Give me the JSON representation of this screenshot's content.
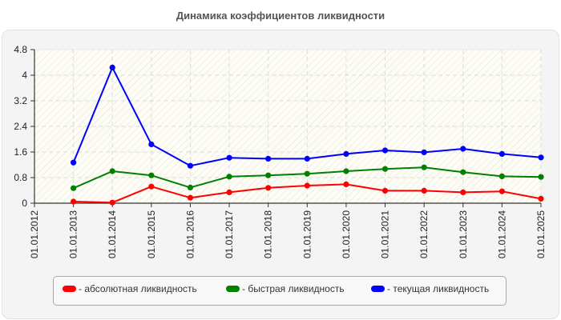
{
  "title": "Динамика коэффициентов ликвидности",
  "chart_data": {
    "type": "line",
    "title": "Динамика коэффициентов ликвидности",
    "xlabel": "",
    "ylabel": "",
    "categories": [
      "01.01.2012",
      "01.01.2013",
      "01.01.2014",
      "01.01.2015",
      "01.01.2016",
      "01.01.2017",
      "01.01.2018",
      "01.01.2019",
      "01.01.2020",
      "01.01.2021",
      "01.01.2022",
      "01.01.2023",
      "01.01.2024",
      "01.01.2025"
    ],
    "yticks": [
      "0",
      "0.8",
      "1.6",
      "2.4",
      "3.2",
      "4",
      "4.8"
    ],
    "ylim": [
      0,
      4.8
    ],
    "grid": true,
    "legend_position": "bottom",
    "series": [
      {
        "name": "абсолютная ликвидность",
        "color": "#ff0000",
        "values": [
          null,
          0.05,
          0.02,
          0.52,
          0.17,
          0.34,
          0.48,
          0.55,
          0.59,
          0.39,
          0.39,
          0.34,
          0.37,
          0.14
        ]
      },
      {
        "name": "быстрая ликвидность",
        "color": "#008000",
        "values": [
          null,
          0.47,
          1.0,
          0.87,
          0.49,
          0.83,
          0.87,
          0.92,
          1.0,
          1.07,
          1.12,
          0.97,
          0.84,
          0.82
        ]
      },
      {
        "name": "текущая ликвидность",
        "color": "#0000ff",
        "values": [
          null,
          1.27,
          4.24,
          1.84,
          1.17,
          1.42,
          1.39,
          1.39,
          1.54,
          1.65,
          1.59,
          1.7,
          1.54,
          1.43
        ]
      }
    ]
  },
  "legend": {
    "items": [
      {
        "label": "- абсолютная ликвидность",
        "color": "#ff0000"
      },
      {
        "label": "- быстрая ликвидность",
        "color": "#008000"
      },
      {
        "label": "- текущая ликвидность",
        "color": "#0000ff"
      }
    ]
  }
}
